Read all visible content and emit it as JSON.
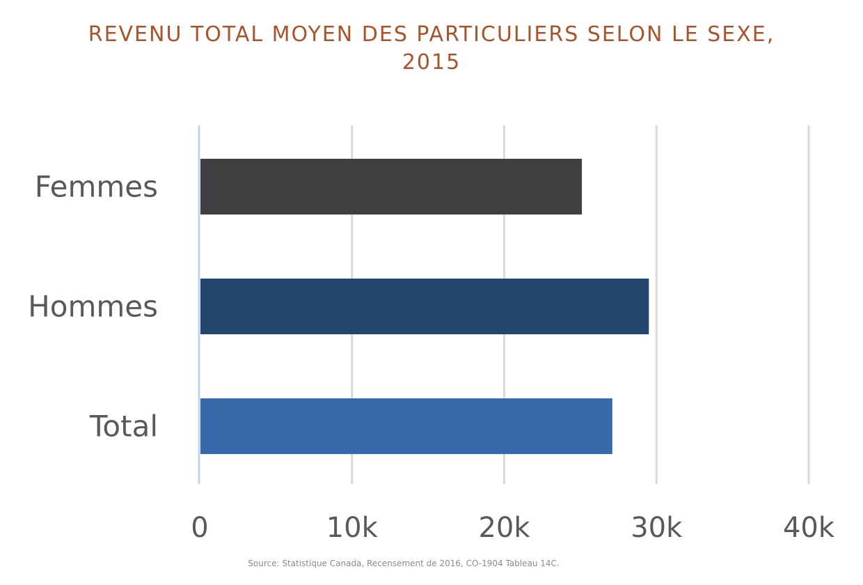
{
  "chart_data": {
    "type": "bar",
    "orientation": "horizontal",
    "title_line1": "REVENU TOTAL MOYEN DES PARTICULIERS SELON LE SEXE,",
    "title_line2": "2015",
    "categories": [
      "Femmes",
      "Hommes",
      "Total"
    ],
    "values": [
      25100,
      29500,
      27100
    ],
    "colors": [
      "#404042",
      "#23446C",
      "#376AAB"
    ],
    "xlim": [
      0,
      40000
    ],
    "xticks": [
      0,
      10000,
      20000,
      30000,
      40000
    ],
    "xtick_labels": [
      "0",
      "10k",
      "20k",
      "30k",
      "40k"
    ],
    "grid": true,
    "legend": "none",
    "source": "Source: Statistique Canada, Recensement de 2016, CO-1904 Tableau 14C."
  }
}
